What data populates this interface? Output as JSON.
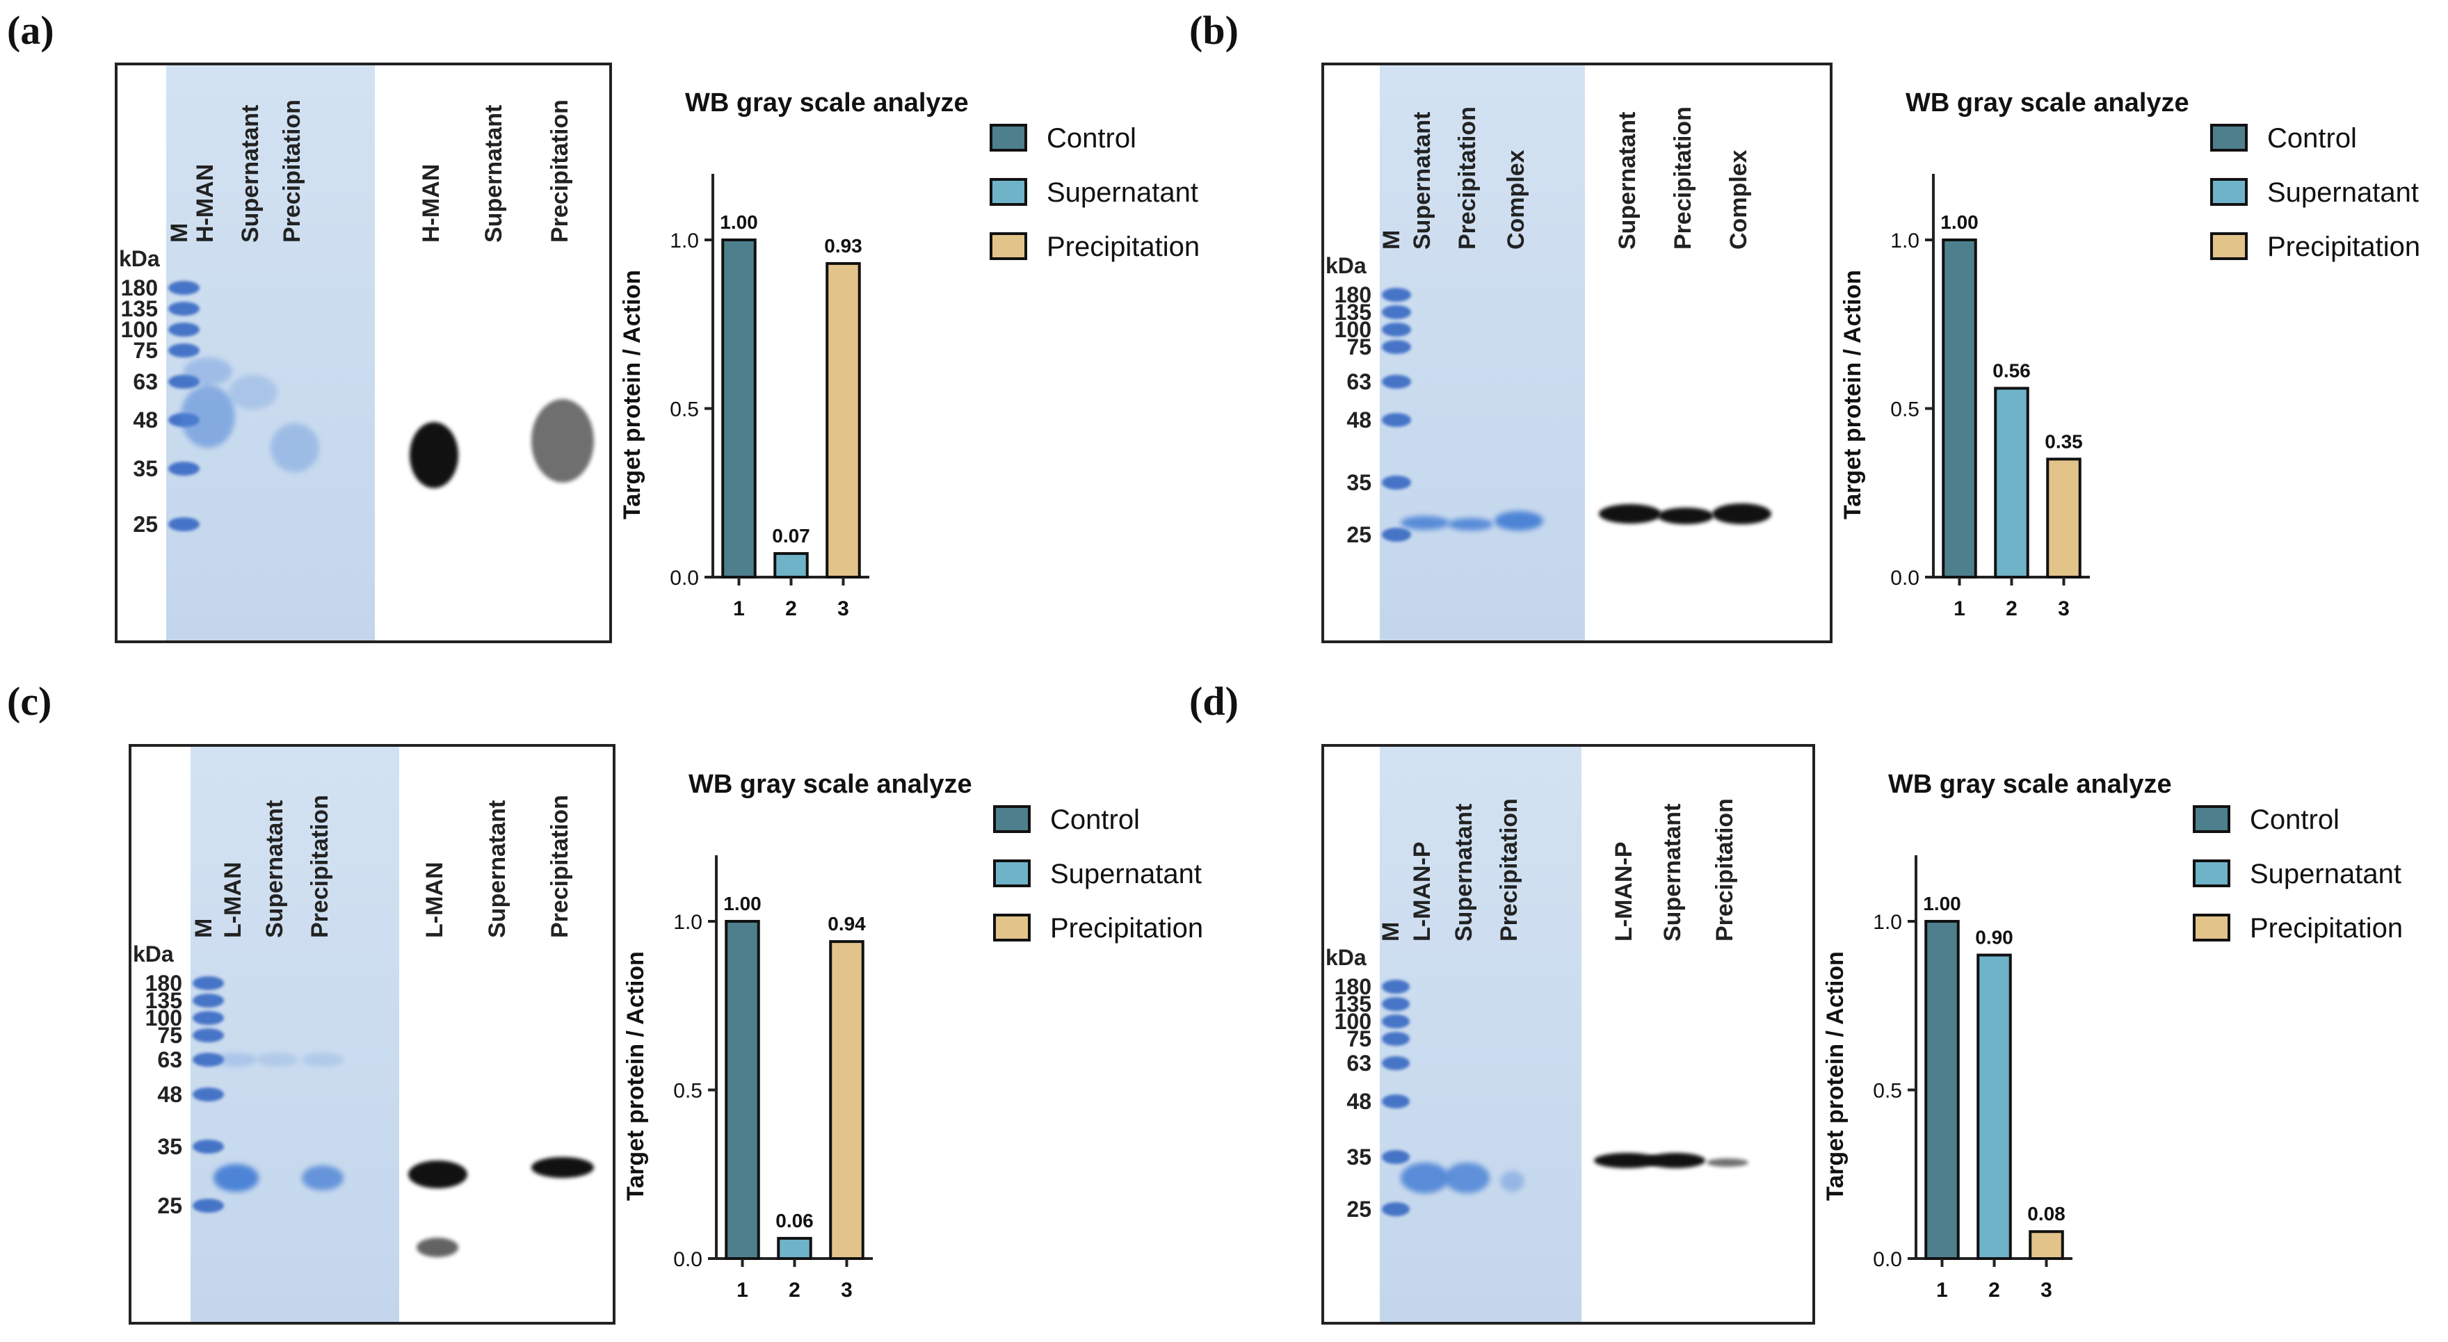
{
  "colors": {
    "control": "#4e7f8c",
    "supernatant": "#6fb3c8",
    "precipitation": "#e2c38a",
    "gel_bg": "#c7d9ee",
    "ladder": "#2f62c0"
  },
  "panels": [
    {
      "letter": "(a)",
      "gel_labels": [
        "M",
        "H-MAN",
        "Supernatant",
        "Precipitation"
      ],
      "wb_labels": [
        "H-MAN",
        "Supernatant",
        "Precipitation"
      ],
      "kda_title": "kDa",
      "markers": [
        "180",
        "135",
        "100",
        "75",
        "63",
        "48",
        "35",
        "25"
      ],
      "chart_data": {
        "type": "bar",
        "title": "WB gray scale analyze",
        "ylabel": "Target protein / Action",
        "categories": [
          "1",
          "2",
          "3"
        ],
        "values": [
          1.0,
          0.07,
          0.93
        ],
        "value_labels": [
          "1.00",
          "0.07",
          "0.93"
        ],
        "ylim": [
          0,
          1.0
        ],
        "yticks": [
          "0.0",
          "0.5",
          "1.0"
        ],
        "legend": [
          "Control",
          "Supernatant",
          "Precipitation"
        ],
        "legend_position": "top-right"
      }
    },
    {
      "letter": "(b)",
      "gel_labels": [
        "M",
        "Supernatant",
        "Precipitation",
        "Complex"
      ],
      "wb_labels": [
        "Supernatant",
        "Precipitation",
        "Complex"
      ],
      "kda_title": "kDa",
      "markers": [
        "180",
        "135",
        "100",
        "75",
        "63",
        "48",
        "35",
        "25"
      ],
      "chart_data": {
        "type": "bar",
        "title": "WB gray scale analyze",
        "ylabel": "Target protein / Action",
        "categories": [
          "1",
          "2",
          "3"
        ],
        "values": [
          1.0,
          0.56,
          0.35
        ],
        "value_labels": [
          "1.00",
          "0.56",
          "0.35"
        ],
        "ylim": [
          0,
          1.0
        ],
        "yticks": [
          "0.0",
          "0.5",
          "1.0"
        ],
        "legend": [
          "Control",
          "Supernatant",
          "Precipitation"
        ],
        "legend_position": "top-right"
      }
    },
    {
      "letter": "(c)",
      "gel_labels": [
        "M",
        "L-MAN",
        "Supernatant",
        "Precipitation"
      ],
      "wb_labels": [
        "L-MAN",
        "Supernatant",
        "Precipitation"
      ],
      "kda_title": "kDa",
      "markers": [
        "180",
        "135",
        "100",
        "75",
        "63",
        "48",
        "35",
        "25"
      ],
      "chart_data": {
        "type": "bar",
        "title": "WB gray scale analyze",
        "ylabel": "Target protein / Action",
        "categories": [
          "1",
          "2",
          "3"
        ],
        "values": [
          1.0,
          0.06,
          0.94
        ],
        "value_labels": [
          "1.00",
          "0.06",
          "0.94"
        ],
        "ylim": [
          0,
          1.0
        ],
        "yticks": [
          "0.0",
          "0.5",
          "1.0"
        ],
        "legend": [
          "Control",
          "Supernatant",
          "Precipitation"
        ],
        "legend_position": "top-right"
      }
    },
    {
      "letter": "(d)",
      "gel_labels": [
        "M",
        "L-MAN-P",
        "Supernatant",
        "Precipitation"
      ],
      "wb_labels": [
        "L-MAN-P",
        "Supernatant",
        "Precipitation"
      ],
      "kda_title": "kDa",
      "markers": [
        "180",
        "135",
        "100",
        "75",
        "63",
        "48",
        "35",
        "25"
      ],
      "chart_data": {
        "type": "bar",
        "title": "WB gray scale analyze",
        "ylabel": "Target protein / Action",
        "categories": [
          "1",
          "2",
          "3"
        ],
        "values": [
          1.0,
          0.9,
          0.08
        ],
        "value_labels": [
          "1.00",
          "0.90",
          "0.08"
        ],
        "ylim": [
          0,
          1.0
        ],
        "yticks": [
          "0.0",
          "0.5",
          "1.0"
        ],
        "legend": [
          "Control",
          "Supernatant",
          "Precipitation"
        ],
        "legend_position": "top-right"
      }
    }
  ]
}
